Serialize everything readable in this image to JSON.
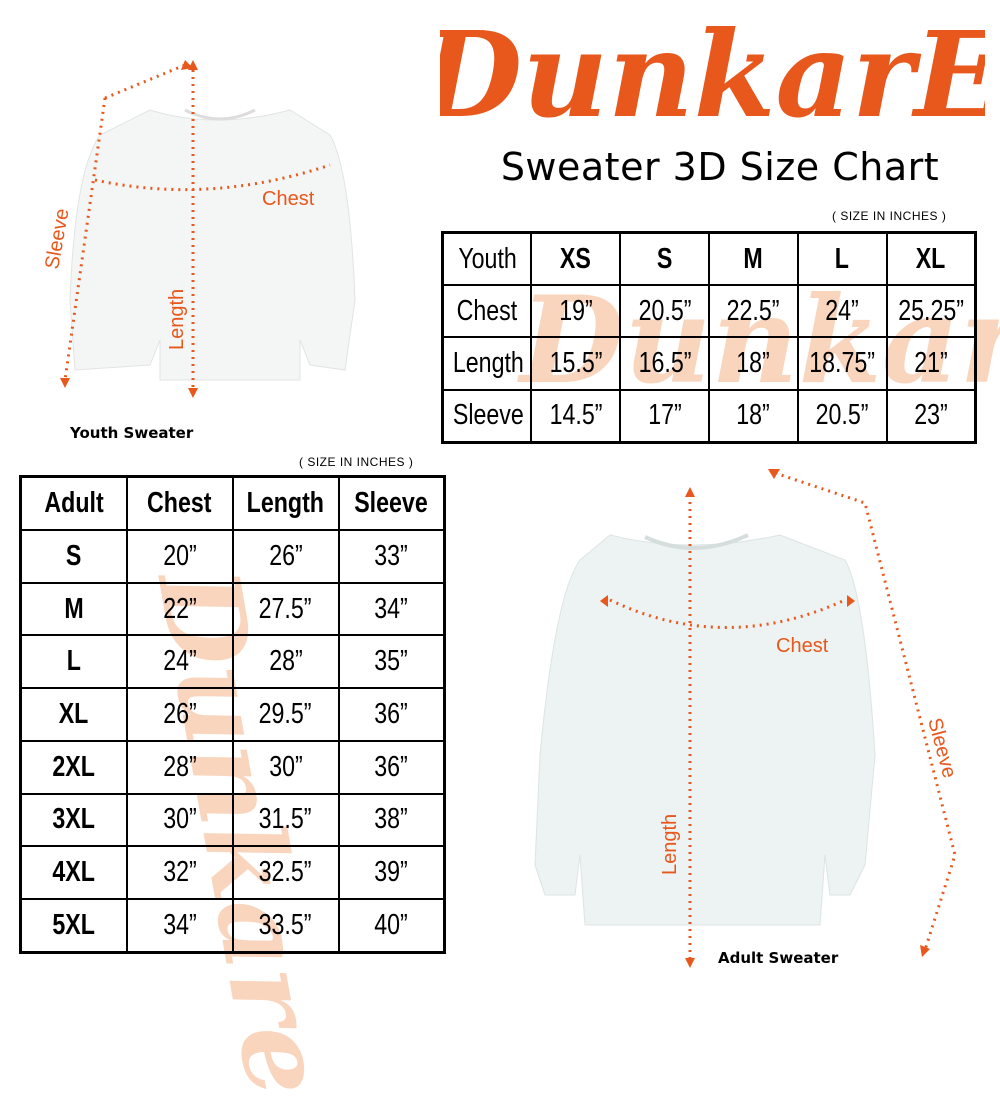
{
  "brand": {
    "logo_text": "DunkarE",
    "color": "#E8571B"
  },
  "title": "Sweater 3D Size Chart",
  "youth": {
    "unit_note": "( SIZE IN INCHES )",
    "header": [
      "Youth",
      "XS",
      "S",
      "M",
      "L",
      "XL"
    ],
    "rows": [
      [
        "Chest",
        "19”",
        "20.5”",
        "22.5”",
        "24”",
        "25.25”"
      ],
      [
        "Length",
        "15.5”",
        "16.5”",
        "18”",
        "18.75”",
        "21”"
      ],
      [
        "Sleeve",
        "14.5”",
        "17”",
        "18”",
        "20.5”",
        "23”"
      ]
    ],
    "image_caption": "Youth Sweater",
    "labels": {
      "chest": "Chest",
      "length": "Length",
      "sleeve": "Sleeve"
    }
  },
  "adult": {
    "unit_note": "( SIZE IN INCHES )",
    "header": [
      "Adult",
      "Chest",
      "Length",
      "Sleeve"
    ],
    "rows": [
      [
        "S",
        "20”",
        "26”",
        "33”"
      ],
      [
        "M",
        "22”",
        "27.5”",
        "34”"
      ],
      [
        "L",
        "24”",
        "28”",
        "35”"
      ],
      [
        "XL",
        "26”",
        "29.5”",
        "36”"
      ],
      [
        "2XL",
        "28”",
        "30”",
        "36”"
      ],
      [
        "3XL",
        "30”",
        "31.5”",
        "38”"
      ],
      [
        "4XL",
        "32”",
        "32.5”",
        "39”"
      ],
      [
        "5XL",
        "34”",
        "33.5”",
        "40”"
      ]
    ],
    "image_caption": "Adult Sweater",
    "labels": {
      "chest": "Chest",
      "length": "Length",
      "sleeve": "Sleeve"
    }
  },
  "colors": {
    "accent": "#E8571B",
    "watermark": "#F7C8A8",
    "sweater_youth": "#F4F5F5",
    "sweater_adult": "#EDF2F2"
  }
}
